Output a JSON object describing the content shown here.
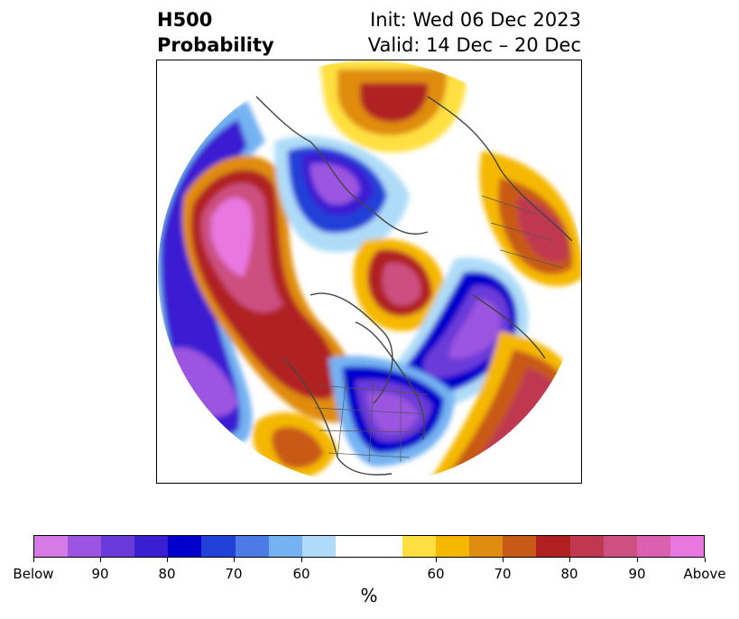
{
  "title": {
    "left_line1": "H500",
    "left_line2": "Probability",
    "right_line1": "Init: Wed 06 Dec 2023",
    "right_line2": "Valid: 14 Dec – 20 Dec"
  },
  "colorbar": {
    "colors": [
      "#d67be6",
      "#9b55e0",
      "#6a3bd8",
      "#3a1ed2",
      "#0000cc",
      "#2040d8",
      "#4d7be6",
      "#74b2f2",
      "#aedcf8",
      "#ffffff",
      "#ffe040",
      "#f5b800",
      "#e08c10",
      "#c85a18",
      "#b02020",
      "#c03850",
      "#cc5080",
      "#dc60b0",
      "#e878e0"
    ],
    "tick_labels": [
      "Below",
      "90",
      "80",
      "70",
      "60",
      "60",
      "70",
      "80",
      "90",
      "Above"
    ],
    "unit_label": "%"
  }
}
